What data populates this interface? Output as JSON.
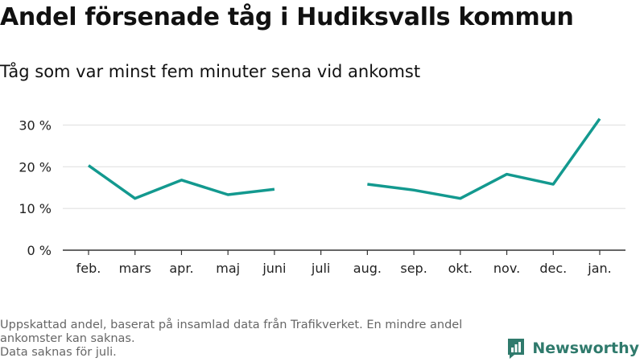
{
  "header": {
    "title": "Andel försenade tåg i Hudiksvalls kommun",
    "subtitle": "Tåg som var minst fem minuter sena vid ankomst"
  },
  "footer": {
    "note_line1": "Uppskattad andel, baserat på insamlad data från Trafikverket. En mindre andel ankomster kan saknas.",
    "note_line2": "Data saknas för juli.",
    "brand": "Newsworthy",
    "logo_icon": "bar-chart-logo-icon"
  },
  "colors": {
    "line": "#13998f",
    "grid": "#dddddd",
    "brand": "#2f7a6c"
  },
  "chart_data": {
    "type": "line",
    "title": "Andel försenade tåg i Hudiksvalls kommun",
    "subtitle": "Tåg som var minst fem minuter sena vid ankomst",
    "categories": [
      "feb.",
      "mars",
      "apr.",
      "maj",
      "juni",
      "juli",
      "aug.",
      "sep.",
      "okt.",
      "nov.",
      "dec.",
      "jan."
    ],
    "series": [
      {
        "values": [
          20.3,
          12.4,
          16.8,
          13.3,
          14.6,
          null,
          15.8,
          14.4,
          12.4,
          18.2,
          15.8,
          31.5
        ]
      }
    ],
    "y_ticks": [
      0,
      10,
      20,
      30
    ],
    "y_tick_labels": [
      "0 %",
      "10 %",
      "20 %",
      "30 %"
    ],
    "ylim": [
      0,
      32
    ],
    "grid": true,
    "legend": "none"
  }
}
